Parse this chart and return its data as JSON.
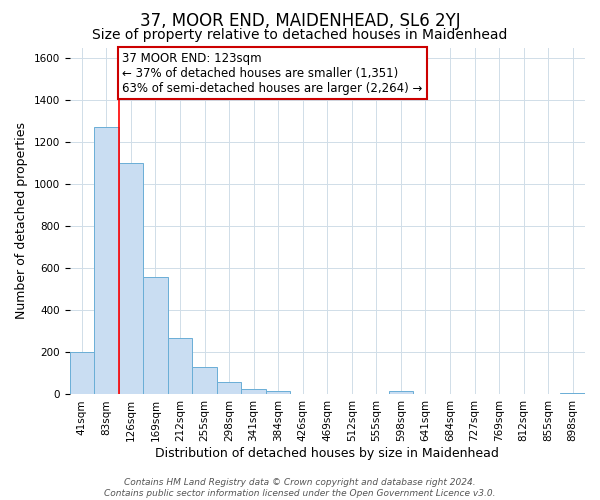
{
  "title": "37, MOOR END, MAIDENHEAD, SL6 2YJ",
  "subtitle": "Size of property relative to detached houses in Maidenhead",
  "xlabel": "Distribution of detached houses by size in Maidenhead",
  "ylabel": "Number of detached properties",
  "footer_line1": "Contains HM Land Registry data © Crown copyright and database right 2024.",
  "footer_line2": "Contains public sector information licensed under the Open Government Licence v3.0.",
  "bin_labels": [
    "41sqm",
    "83sqm",
    "126sqm",
    "169sqm",
    "212sqm",
    "255sqm",
    "298sqm",
    "341sqm",
    "384sqm",
    "426sqm",
    "469sqm",
    "512sqm",
    "555sqm",
    "598sqm",
    "641sqm",
    "684sqm",
    "727sqm",
    "769sqm",
    "812sqm",
    "855sqm",
    "898sqm"
  ],
  "bar_values": [
    200,
    1270,
    1100,
    560,
    270,
    130,
    60,
    28,
    18,
    0,
    0,
    0,
    0,
    15,
    0,
    0,
    0,
    0,
    0,
    0,
    5
  ],
  "bar_color": "#c9ddf2",
  "bar_edge_color": "#6aaed6",
  "red_line_bin_index": 1,
  "annotation_title": "37 MOOR END: 123sqm",
  "annotation_line1": "← 37% of detached houses are smaller (1,351)",
  "annotation_line2": "63% of semi-detached houses are larger (2,264) →",
  "annotation_box_facecolor": "#ffffff",
  "annotation_box_edgecolor": "#cc0000",
  "ylim": [
    0,
    1650
  ],
  "yticks": [
    0,
    200,
    400,
    600,
    800,
    1000,
    1200,
    1400,
    1600
  ],
  "background_color": "#ffffff",
  "grid_color": "#d0dde8",
  "title_fontsize": 12,
  "subtitle_fontsize": 10,
  "axis_label_fontsize": 9,
  "tick_fontsize": 7.5,
  "annotation_fontsize": 8.5,
  "footer_fontsize": 6.5
}
